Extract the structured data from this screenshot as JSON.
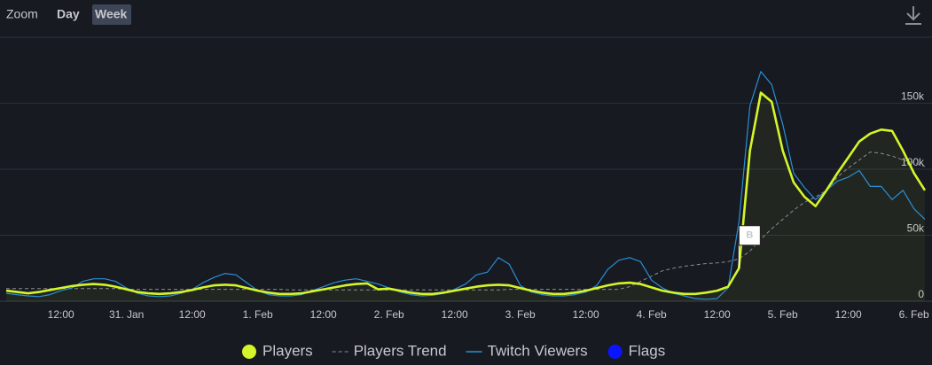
{
  "zoom": {
    "label": "Zoom",
    "options": [
      "Day",
      "Week"
    ],
    "selected": "Week"
  },
  "chart_data": {
    "type": "line",
    "categories": [
      null,
      null,
      null,
      null,
      null,
      "12:00",
      null,
      null,
      null,
      null,
      null,
      "31. Jan",
      null,
      null,
      null,
      null,
      null,
      "12:00",
      null,
      null,
      null,
      null,
      null,
      "1. Feb",
      null,
      null,
      null,
      null,
      null,
      "12:00",
      null,
      null,
      null,
      null,
      null,
      "2. Feb",
      null,
      null,
      null,
      null,
      null,
      "12:00",
      null,
      null,
      null,
      null,
      null,
      "3. Feb",
      null,
      null,
      null,
      null,
      null,
      "12:00",
      null,
      null,
      null,
      null,
      null,
      "4. Feb",
      null,
      null,
      null,
      null,
      null,
      "12:00",
      null,
      null,
      null,
      null,
      null,
      "5. Feb",
      null,
      null,
      null,
      null,
      null,
      "12:00",
      null,
      null,
      null,
      null,
      null,
      "6. Feb",
      null
    ],
    "series": [
      {
        "name": "Players",
        "color": "#d4f52a",
        "style": "solid",
        "fill": true,
        "values": [
          8000,
          7000,
          6000,
          7000,
          8500,
          10000,
          11500,
          12500,
          13000,
          12500,
          11000,
          9000,
          7000,
          6000,
          5500,
          6000,
          7000,
          8500,
          10500,
          12000,
          12500,
          12000,
          10000,
          8000,
          6500,
          5500,
          5500,
          6000,
          7500,
          9000,
          10500,
          12000,
          13000,
          13500,
          9000,
          9500,
          8000,
          6500,
          5500,
          5500,
          6500,
          8000,
          9500,
          11000,
          12000,
          12500,
          12000,
          10000,
          8000,
          6500,
          5500,
          5500,
          6500,
          8000,
          10000,
          12000,
          13500,
          14000,
          13000,
          10500,
          8000,
          6500,
          5500,
          5500,
          6500,
          8000,
          11000,
          25000,
          114000,
          158000,
          151000,
          114000,
          90000,
          79000,
          72000,
          84000,
          97000,
          109000,
          121000,
          127000,
          130000,
          129000,
          114000,
          97000,
          84000
        ]
      },
      {
        "name": "Players Trend",
        "color": "#8a8d93",
        "style": "dashed",
        "fill": false,
        "values": [
          9500,
          9500,
          9500,
          9500,
          9500,
          9500,
          9500,
          9500,
          9500,
          9500,
          9500,
          9000,
          9000,
          9000,
          9000,
          9000,
          9000,
          9000,
          9000,
          9000,
          9000,
          9000,
          9000,
          9000,
          9000,
          9000,
          8500,
          8500,
          8500,
          8500,
          8500,
          8500,
          8500,
          8500,
          8500,
          8500,
          8500,
          8500,
          8500,
          8500,
          8500,
          8500,
          8500,
          8500,
          8500,
          8500,
          9000,
          9000,
          9000,
          9000,
          9000,
          9000,
          9000,
          9000,
          9000,
          9000,
          9000,
          11000,
          15000,
          19000,
          23000,
          25000,
          26500,
          27500,
          28500,
          29000,
          30000,
          32000,
          38000,
          47000,
          55000,
          62000,
          69000,
          75000,
          79000,
          84000,
          94000,
          101000,
          107000,
          113000,
          112000,
          110000,
          107000,
          105000,
          102000
        ]
      },
      {
        "name": "Twitch Viewers",
        "color": "#2a8fd6",
        "style": "thin",
        "fill": false,
        "values": [
          6000,
          5000,
          4000,
          3500,
          5000,
          8000,
          10000,
          15000,
          17000,
          17000,
          15000,
          10000,
          6000,
          4000,
          3500,
          4000,
          6000,
          9000,
          14000,
          18000,
          21000,
          20000,
          14000,
          8000,
          5000,
          4000,
          4000,
          5000,
          8000,
          11000,
          14000,
          16000,
          17000,
          15000,
          13000,
          10000,
          7000,
          5000,
          4000,
          4500,
          6000,
          9000,
          13000,
          20000,
          22000,
          33000,
          28000,
          12000,
          7000,
          5000,
          4000,
          4000,
          5000,
          7000,
          12000,
          24000,
          31000,
          33000,
          30000,
          16000,
          10000,
          6000,
          4000,
          2000,
          1500,
          2000,
          10000,
          60000,
          148000,
          174000,
          164000,
          134000,
          97000,
          86000,
          77000,
          84000,
          91000,
          94000,
          99000,
          87000,
          87000,
          77000,
          84000,
          70000,
          62000
        ]
      }
    ],
    "flags": {
      "name": "Flags",
      "color": "#0a14ff",
      "on_series": 0,
      "labels": [
        null,
        null,
        null,
        null,
        null,
        null,
        null,
        null,
        null,
        null,
        null,
        null,
        null,
        null,
        null,
        null,
        null,
        null,
        null,
        null,
        null,
        null,
        null,
        null,
        null,
        null,
        null,
        null,
        null,
        null,
        null,
        null,
        null,
        null,
        null,
        null,
        null,
        null,
        null,
        null,
        null,
        null,
        null,
        null,
        null,
        null,
        null,
        null,
        null,
        null,
        null,
        null,
        null,
        null,
        null,
        null,
        null,
        null,
        null,
        null,
        null,
        null,
        null,
        null,
        null,
        null,
        null,
        "B",
        null,
        null,
        null,
        null,
        null,
        null,
        null,
        null,
        null,
        null,
        null,
        null,
        null,
        null,
        null,
        null,
        null,
        null,
        null
      ]
    },
    "ylim": [
      0,
      200000
    ],
    "yticks": [
      0,
      {
        "value": 50000,
        "label": "50k"
      },
      {
        "value": 100000,
        "label": "100k"
      },
      {
        "value": 150000,
        "label": "150k"
      }
    ],
    "grid": true
  }
}
